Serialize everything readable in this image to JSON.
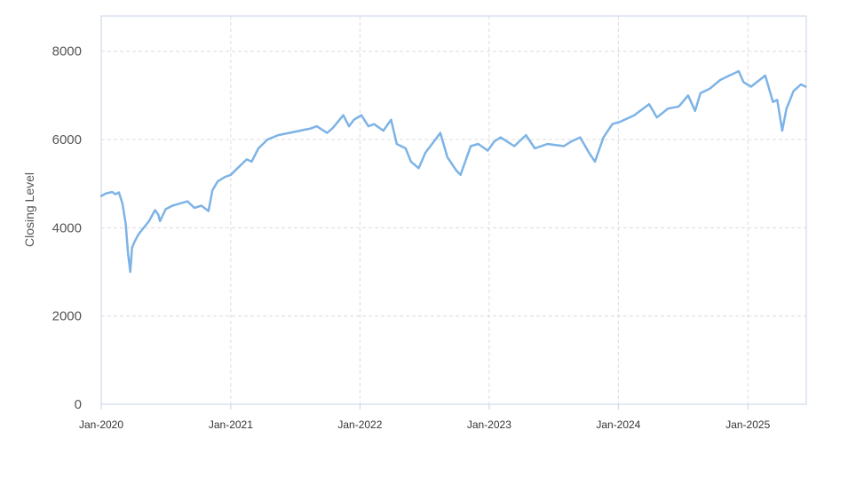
{
  "chart_data": {
    "type": "line",
    "title": "",
    "xlabel": "",
    "ylabel": "Closing Level",
    "ylim": [
      0,
      8800
    ],
    "xlim": [
      "2020-01-01",
      "2025-06-15"
    ],
    "y_ticks": [
      "0",
      "2000",
      "4000",
      "6000",
      "8000"
    ],
    "x_ticks": [
      "Jan-2020",
      "Jan-2021",
      "Jan-2022",
      "Jan-2023",
      "Jan-2024",
      "Jan-2025"
    ],
    "grid": true,
    "legend": "none",
    "line_color": "#7db3e6",
    "grid_color": "#dcdcdc",
    "axis_color": "#c7d3e6",
    "series": [
      {
        "x": [
          "2020-01-01",
          "2020-01-15",
          "2020-02-01",
          "2020-02-10",
          "2020-02-20",
          "2020-03-01",
          "2020-03-10",
          "2020-03-17",
          "2020-03-23",
          "2020-03-28",
          "2020-04-05",
          "2020-04-15",
          "2020-04-30",
          "2020-05-15",
          "2020-06-01",
          "2020-06-10",
          "2020-06-15",
          "2020-07-01",
          "2020-07-20",
          "2020-08-10",
          "2020-09-01",
          "2020-09-20",
          "2020-10-10",
          "2020-10-30",
          "2020-11-10",
          "2020-11-25",
          "2020-12-15",
          "2021-01-01",
          "2021-01-20",
          "2021-02-15",
          "2021-03-01",
          "2021-03-20",
          "2021-04-15",
          "2021-05-15",
          "2021-06-15",
          "2021-07-15",
          "2021-08-15",
          "2021-09-01",
          "2021-09-30",
          "2021-10-15",
          "2021-11-15",
          "2021-12-01",
          "2021-12-15",
          "2022-01-05",
          "2022-01-25",
          "2022-02-10",
          "2022-03-08",
          "2022-03-30",
          "2022-04-15",
          "2022-05-10",
          "2022-05-25",
          "2022-06-16",
          "2022-07-05",
          "2022-08-16",
          "2022-09-05",
          "2022-09-30",
          "2022-10-12",
          "2022-11-10",
          "2022-12-01",
          "2022-12-28",
          "2023-01-15",
          "2023-02-02",
          "2023-03-13",
          "2023-04-15",
          "2023-05-10",
          "2023-06-15",
          "2023-07-31",
          "2023-08-20",
          "2023-09-15",
          "2023-10-10",
          "2023-10-27",
          "2023-11-20",
          "2023-12-15",
          "2024-01-05",
          "2024-02-15",
          "2024-03-28",
          "2024-04-19",
          "2024-05-20",
          "2024-06-20",
          "2024-07-16",
          "2024-08-05",
          "2024-08-20",
          "2024-09-15",
          "2024-10-15",
          "2024-11-10",
          "2024-12-06",
          "2024-12-20",
          "2025-01-10",
          "2025-02-19",
          "2025-03-13",
          "2025-03-25",
          "2025-04-08",
          "2025-04-20",
          "2025-05-10",
          "2025-05-31",
          "2025-06-13"
        ],
        "y": [
          4720,
          4780,
          4810,
          4760,
          4800,
          4550,
          4100,
          3400,
          3000,
          3550,
          3700,
          3850,
          4000,
          4150,
          4400,
          4300,
          4150,
          4420,
          4500,
          4550,
          4600,
          4450,
          4500,
          4380,
          4850,
          5050,
          5150,
          5200,
          5350,
          5550,
          5500,
          5800,
          6000,
          6100,
          6150,
          6200,
          6250,
          6300,
          6150,
          6250,
          6550,
          6300,
          6450,
          6550,
          6300,
          6350,
          6200,
          6450,
          5900,
          5800,
          5500,
          5350,
          5700,
          6150,
          5600,
          5300,
          5200,
          5850,
          5900,
          5750,
          5950,
          6050,
          5850,
          6100,
          5800,
          5900,
          5850,
          5950,
          6050,
          5700,
          5500,
          6050,
          6350,
          6400,
          6550,
          6800,
          6500,
          6700,
          6750,
          7000,
          6650,
          7050,
          7150,
          7350,
          7450,
          7550,
          7300,
          7200,
          7450,
          6850,
          6900,
          6200,
          6700,
          7100,
          7250,
          7200
        ]
      }
    ]
  }
}
